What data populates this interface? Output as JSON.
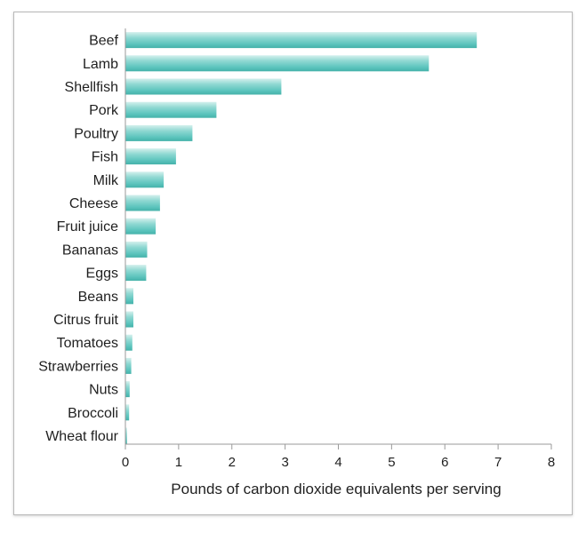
{
  "chart_data": {
    "type": "bar",
    "orientation": "horizontal",
    "categories": [
      "Beef",
      "Lamb",
      "Shellfish",
      "Pork",
      "Poultry",
      "Fish",
      "Milk",
      "Cheese",
      "Fruit juice",
      "Bananas",
      "Eggs",
      "Beans",
      "Citrus fruit",
      "Tomatoes",
      "Strawberries",
      "Nuts",
      "Broccoli",
      "Wheat flour"
    ],
    "values": [
      6.6,
      5.7,
      2.93,
      1.71,
      1.26,
      0.95,
      0.72,
      0.65,
      0.57,
      0.41,
      0.39,
      0.15,
      0.15,
      0.13,
      0.11,
      0.08,
      0.07,
      0.03
    ],
    "title": "",
    "xlabel": "Pounds of carbon dioxide equivalents per serving",
    "ylabel": "",
    "xlim": [
      0,
      8
    ],
    "xticks": [
      "0",
      "1",
      "2",
      "3",
      "4",
      "5",
      "6",
      "7",
      "8"
    ],
    "grid": false,
    "bar_color": "#5cc4bd",
    "bar_highlight": "#bde9e5",
    "bar_shadow": "#3aa9a1"
  }
}
